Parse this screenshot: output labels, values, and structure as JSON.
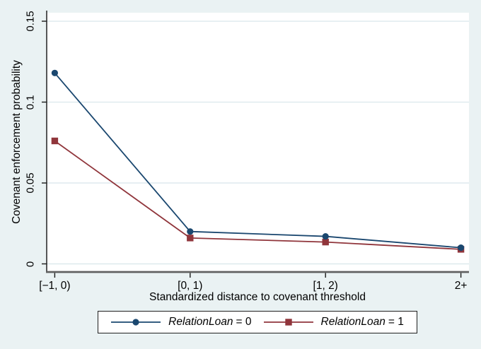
{
  "colors": {
    "background": "#eaf2f3",
    "plot_background": "#ffffff",
    "grid": "#dde9ed",
    "y_axis_line": "#3a3a3a",
    "x_axis_line": "#606060",
    "tick": "#1a1a1a",
    "navy": "#1a476f",
    "maroon": "#90353b",
    "legend_border": "#1f1f1f"
  },
  "chart_data": {
    "type": "line",
    "categories": [
      "[−1, 0)",
      "[0, 1)",
      "[1, 2)",
      "2+"
    ],
    "series": [
      {
        "name_var": "RelationLoan",
        "name_eq": "= 0",
        "label": "RelationLoan = 0",
        "marker": "circle",
        "color": "#1a476f",
        "values": [
          0.118,
          0.02,
          0.017,
          0.01
        ]
      },
      {
        "name_var": "RelationLoan",
        "name_eq": "= 1",
        "label": "RelationLoan = 1",
        "marker": "square",
        "color": "#90353b",
        "values": [
          0.076,
          0.016,
          0.0135,
          0.009
        ]
      }
    ],
    "xlabel": "Standardized distance to covenant threshold",
    "ylabel": "Covenant enforcement probability",
    "y_ticks": [
      {
        "value": 0,
        "label": "0"
      },
      {
        "value": 0.05,
        "label": "0.05"
      },
      {
        "value": 0.1,
        "label": "0.1"
      },
      {
        "value": 0.15,
        "label": "0.15"
      }
    ],
    "ylim": [
      -0.00502,
      0.15525
    ],
    "grid": true,
    "legend_position": "bottom"
  }
}
